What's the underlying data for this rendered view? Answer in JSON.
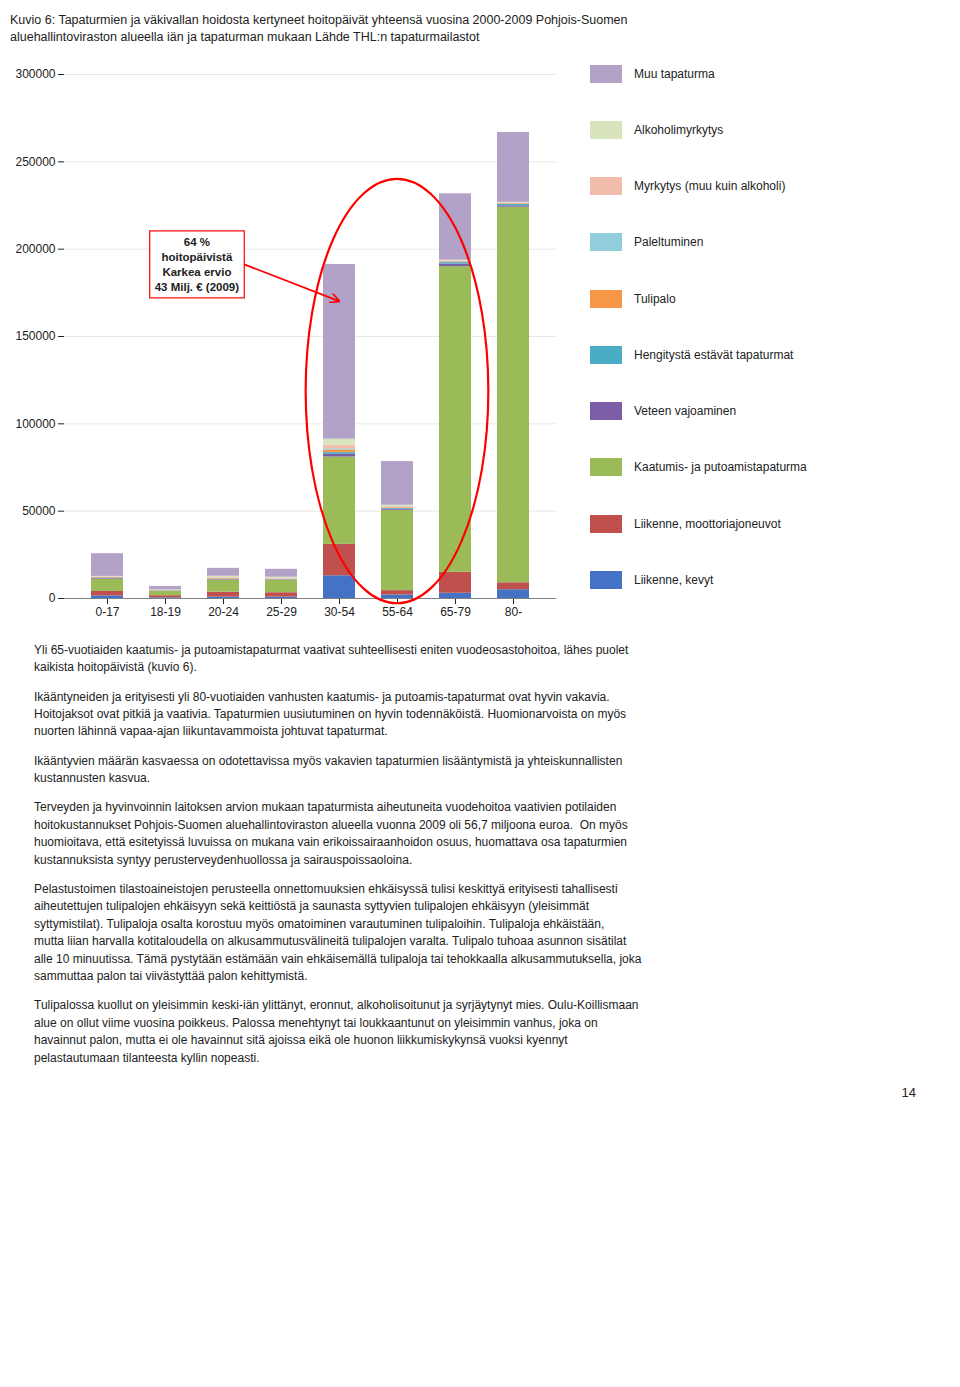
{
  "chart_data": {
    "type": "bar",
    "stacked": true,
    "title": "Kuvio 6: Tapaturmien ja väkivallan hoidosta kertyneet hoitopäivät yhteensä vuosina 2000-2009 Pohjois-Suomen",
    "subtitle": "aluehallintoviraston alueella iän ja tapaturman mukaan  Lähde THL:n tapaturmailastot",
    "categories": [
      "0-17",
      "18-19",
      "20-24",
      "25-29",
      "30-54",
      "55-64",
      "65-79",
      "80-"
    ],
    "series": [
      {
        "name": "Liikenne, kevyt",
        "color": "#4472C4",
        "values": [
          1500,
          400,
          800,
          800,
          13000,
          2000,
          3000,
          5000
        ]
      },
      {
        "name": "Liikenne, moottoriajoneuvot",
        "color": "#C0504D",
        "values": [
          2500,
          1200,
          2800,
          2500,
          18000,
          2500,
          12000,
          4000
        ]
      },
      {
        "name": "Kaatumis- ja putoamistapaturma",
        "color": "#9BBB59",
        "values": [
          7000,
          2500,
          7000,
          7000,
          50000,
          46000,
          175000,
          215000
        ]
      },
      {
        "name": "Veteen vajoaminen",
        "color": "#7B5EA7",
        "values": [
          400,
          150,
          300,
          300,
          1500,
          700,
          1500,
          800
        ]
      },
      {
        "name": "Hengitystä estävät tapaturmat",
        "color": "#4BACC6",
        "values": [
          300,
          100,
          200,
          150,
          1000,
          400,
          800,
          800
        ]
      },
      {
        "name": "Tulipalo",
        "color": "#F79646",
        "values": [
          300,
          100,
          300,
          200,
          1500,
          400,
          400,
          400
        ]
      },
      {
        "name": "Paleltuminen",
        "color": "#92CDDC",
        "values": [
          150,
          80,
          150,
          150,
          700,
          200,
          200,
          150
        ]
      },
      {
        "name": "Myrkytys (muu kuin alkoholi)",
        "color": "#F2BDAC",
        "values": [
          300,
          150,
          400,
          300,
          2000,
          400,
          400,
          400
        ]
      },
      {
        "name": "Alkoholimyrkytys",
        "color": "#D8E4BC",
        "values": [
          200,
          250,
          800,
          800,
          3500,
          800,
          400,
          250
        ]
      },
      {
        "name": "Muu tapaturma",
        "color": "#B3A2C7",
        "values": [
          13000,
          2000,
          4500,
          4500,
          100000,
          25000,
          38000,
          40000
        ]
      }
    ],
    "ylim": [
      0,
      300000
    ],
    "yticks": [
      0,
      50000,
      100000,
      150000,
      200000,
      250000,
      300000
    ],
    "grid": true,
    "legend": "right",
    "annotations": [
      {
        "text": "64 %\nhoitopäivistä\nKarkea ervio\n43 Milj. € (2009)",
        "x": "30-54",
        "y": 170000,
        "categories": [
          "30-54",
          "55-64",
          "65-79"
        ]
      }
    ]
  },
  "text": [
    "Yli 65-vuotiaiden kaatumis- ja putoamistapaturmat vaativat suhteellisesti eniten vuodeosastohoitoa, lähes puolet\nkaikista hoitopäivistä (kuvio 6).",
    "Ikääntyneiden ja erityisesti yli 80-vuotiaiden vanhusten kaatumis- ja putoamis-tapaturmat ovat hyvin vakavia.\nHoitojaksot ovat pitkiä ja vaativia. Tapaturmien uusiutuminen on hyvin todennäköistä. Huomionarvoista on myös\nnuorten lähinnä vapaa-ajan liikuntavammoista johtuvat tapaturmat.",
    "Ikääntyvien määrän kasvaessa on odotettavissa myös vakavien tapaturmien lisääntymistä ja yhteiskunnallisten\nkustannusten kasvua.",
    "Terveyden ja hyvinvoinnin laitoksen arvion mukaan tapaturmista aiheutuneita vuodehoitoa vaativien potilaiden\nhoitokustannukset Pohjois-Suomen aluehallintoviraston alueella vuonna 2009 oli 56,7 miljoona euroa.  On myös\nhuomioitava, että esitetyissä luvuissa on mukana vain erikoissairaanhoidon osuus, huomattava osa tapaturmien\nkustannuksista syntyy perusterveydenhuollossa ja sairauspoissaoloina.",
    "Pelastustoimen tilastoaineistojen perusteella onnettomuuksien ehkäisyssä tulisi keskittyä erityisesti tahallisesti\naiheutettujen tulipalojen ehkäisyyn sekä keittiöstä ja saunasta syttyvien tulipalojen ehkäisyyn (yleisimmät\nsyttymistilat). Tulipaloja osalta korostuu myös omatoiminen varautuminen tulipaloihin. Tulipaloja ehkäistään,\nmutta liian harvalla kotitaloudella on alkusammutusvälineitä tulipalojen varalta. Tulipalo tuhoaa asunnon sisätilat\nalle 10 minuutissa. Tämä pystytään estämään vain ehkäisemällä tulipaloja tai tehokkaalla alkusammutuksella, joka\nsammuttaa palon tai viivästyttää palon kehittymistä.",
    "Tulipalossa kuollut on yleisimmin keski-iän ylittänyt, eronnut, alkoholisoitunut ja syrjäytynyt mies. Oulu-Koillismaan\nalue on ollut viime vuosina poikkeus. Palossa menehtynyt tai loukkaantunut on yleisimmin vanhus, joka on\nhavainnut palon, mutta ei ole havainnut sitä ajoissa eikä ole huonon liikkumiskykynsä vuoksi kyennyt\npelastautumaan tilanteesta kyllin nopeasti."
  ],
  "page_number": "14"
}
